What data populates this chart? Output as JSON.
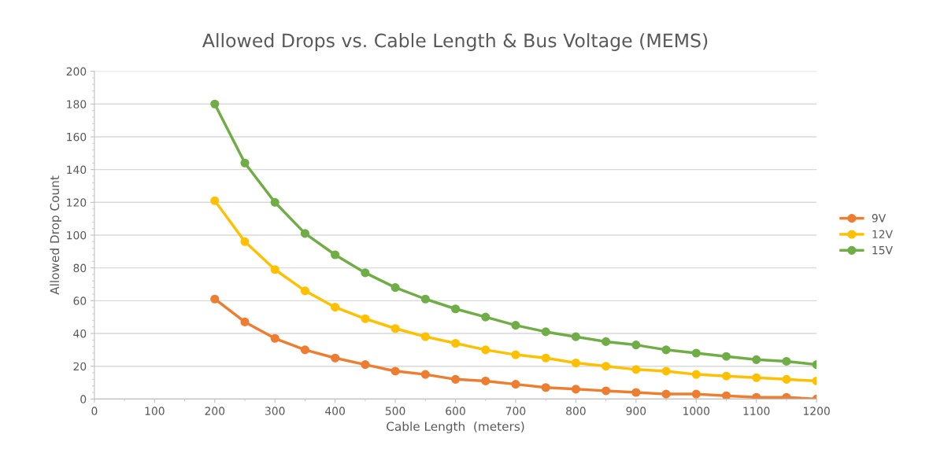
{
  "chart_data": {
    "type": "line",
    "title": "Allowed Drops vs. Cable Length & Bus Voltage (MEMS)",
    "xlabel": "Cable Length  (meters)",
    "ylabel": "Allowed Drop Count",
    "x": [
      200,
      250,
      300,
      350,
      400,
      450,
      500,
      550,
      600,
      650,
      700,
      750,
      800,
      850,
      900,
      950,
      1000,
      1050,
      1100,
      1150,
      1200
    ],
    "series": [
      {
        "name": "9V",
        "color": "#ed7d31",
        "values": [
          61,
          47,
          37,
          30,
          25,
          21,
          17,
          15,
          12,
          11,
          9,
          7,
          6,
          5,
          4,
          3,
          3,
          2,
          1,
          1,
          0
        ]
      },
      {
        "name": "12V",
        "color": "#ffc000",
        "values": [
          121,
          96,
          79,
          66,
          56,
          49,
          43,
          38,
          34,
          30,
          27,
          25,
          22,
          20,
          18,
          17,
          15,
          14,
          13,
          12,
          11
        ]
      },
      {
        "name": "15V",
        "color": "#70ad47",
        "values": [
          180,
          144,
          120,
          101,
          88,
          77,
          68,
          61,
          55,
          50,
          45,
          41,
          38,
          35,
          33,
          30,
          28,
          26,
          24,
          23,
          21
        ]
      }
    ],
    "xlim": [
      0,
      1200
    ],
    "xticks": [
      0,
      100,
      200,
      300,
      400,
      500,
      600,
      700,
      800,
      900,
      1000,
      1100,
      1200
    ],
    "ylim": [
      0,
      200
    ],
    "yticks": [
      0,
      20,
      40,
      60,
      80,
      100,
      120,
      140,
      160,
      180,
      200
    ],
    "grid": "y",
    "legend": "right",
    "marker": "circle",
    "line_style": "solid"
  }
}
